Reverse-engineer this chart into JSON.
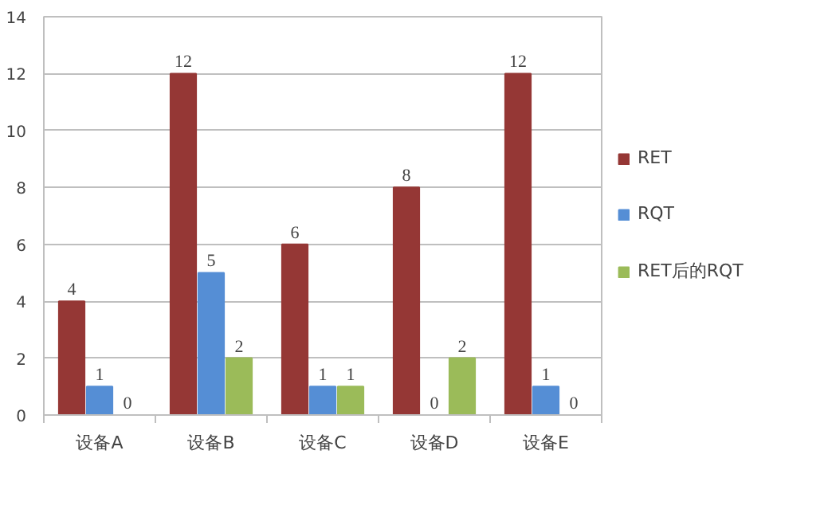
{
  "chart_data": {
    "type": "bar",
    "categories": [
      "设备A",
      "设备B",
      "设备C",
      "设备D",
      "设备E"
    ],
    "series": [
      {
        "name": "RET",
        "color": "#953735",
        "values": [
          4,
          12,
          6,
          8,
          12
        ]
      },
      {
        "name": "RQT",
        "color": "#558ed5",
        "values": [
          1,
          5,
          1,
          0,
          1
        ]
      },
      {
        "name": "RET后的RQT",
        "color": "#9bbb59",
        "values": [
          0,
          2,
          1,
          2,
          0
        ]
      }
    ],
    "ylim": [
      0,
      14
    ],
    "yticks": [
      0,
      2,
      4,
      6,
      8,
      10,
      12,
      14
    ],
    "grid": "y",
    "legend": "right",
    "data_labels": true
  }
}
